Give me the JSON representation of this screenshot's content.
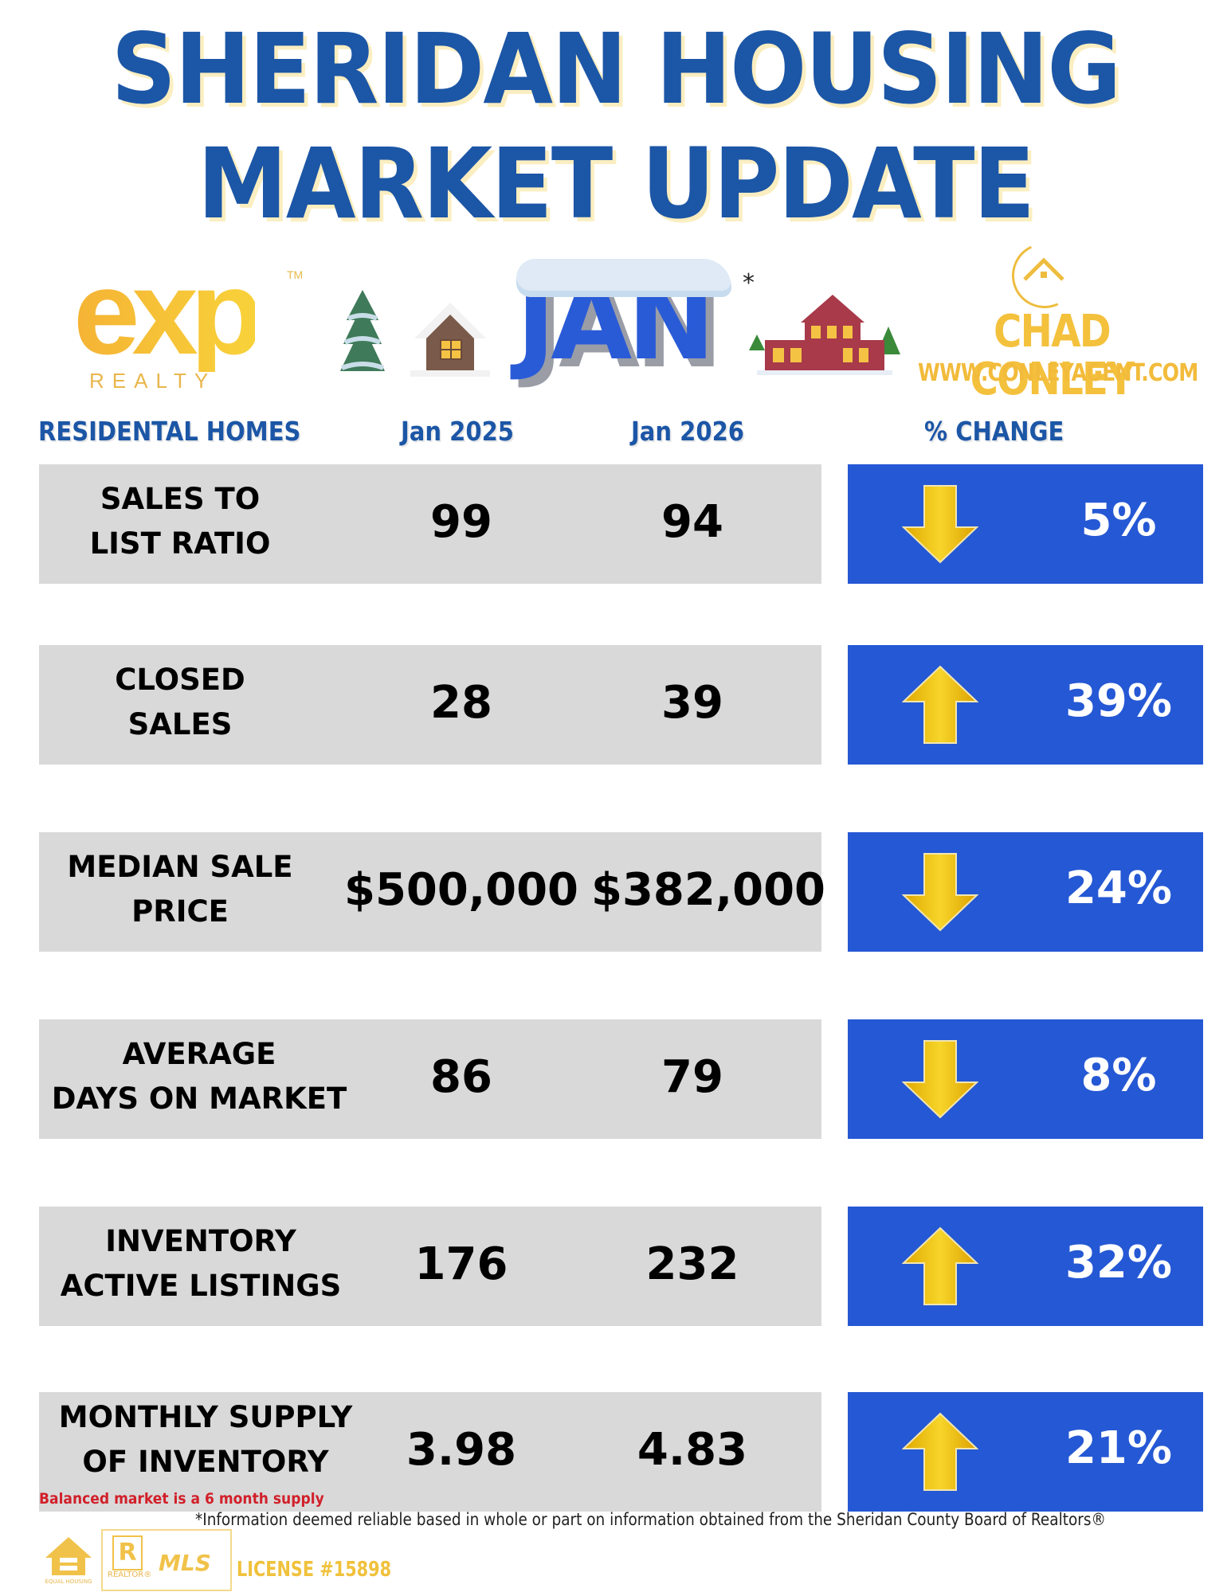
{
  "header": {
    "title_line1": "SHERIDAN HOUSING",
    "title_line2": "MARKET UPDATE",
    "month": "JAN",
    "month_asterisk": "*",
    "colors": {
      "title_blue": "#1c56a6",
      "title_shadow": "#fbeec0",
      "change_box_blue": "#2558d4",
      "row_gray": "#d9d9d9",
      "arrow_gold": "#f2c21b",
      "note_red": "#d1202a"
    }
  },
  "brand": {
    "exp_logo": {
      "word": "exp",
      "tm": "TM",
      "sub": "REALTY"
    },
    "agent": {
      "name": "CHAD CONLEY",
      "url": "WWW.CONLEYAGENT.COM",
      "icon": "house-circle-icon"
    },
    "decor_icons": [
      "snowy-pine-tree-icon",
      "snowy-cabin-icon",
      "victorian-house-icon"
    ]
  },
  "table": {
    "columns": [
      "RESIDENTAL HOMES",
      "Jan 2025",
      "Jan 2026",
      "% CHANGE"
    ],
    "rows": [
      {
        "label_line1": "SALES TO",
        "label_line2": "LIST RATIO",
        "jan2025": "99",
        "jan2026": "94",
        "direction": "down",
        "change": "5%"
      },
      {
        "label_line1": "CLOSED",
        "label_line2": "SALES",
        "jan2025": "28",
        "jan2026": "39",
        "direction": "up",
        "change": "39%"
      },
      {
        "label_line1": "MEDIAN SALE",
        "label_line2": "PRICE",
        "jan2025": "$500,000",
        "jan2026": "$382,000",
        "direction": "down",
        "change": "24%"
      },
      {
        "label_line1": "AVERAGE",
        "label_line2": "DAYS ON MARKET",
        "jan2025": "86",
        "jan2026": "79",
        "direction": "down",
        "change": "8%"
      },
      {
        "label_line1": "INVENTORY",
        "label_line2": "ACTIVE LISTINGS",
        "jan2025": "176",
        "jan2026": "232",
        "direction": "up",
        "change": "32%"
      },
      {
        "label_line1": "MONTHLY SUPPLY",
        "label_line2": "OF INVENTORY",
        "jan2025": "3.98",
        "jan2026": "4.83",
        "direction": "up",
        "change": "21%"
      }
    ]
  },
  "footer": {
    "note": "Balanced market is a 6 month supply",
    "disclaimer": "*Information deemed reliable based in whole or part on information obtained from the Sheridan County Board of Realtors®",
    "equal_housing": "EQUAL HOUSING OPPORTUNITY",
    "realtor": "REALTOR®",
    "mls": "MLS",
    "license": "LICENSE #15898"
  }
}
